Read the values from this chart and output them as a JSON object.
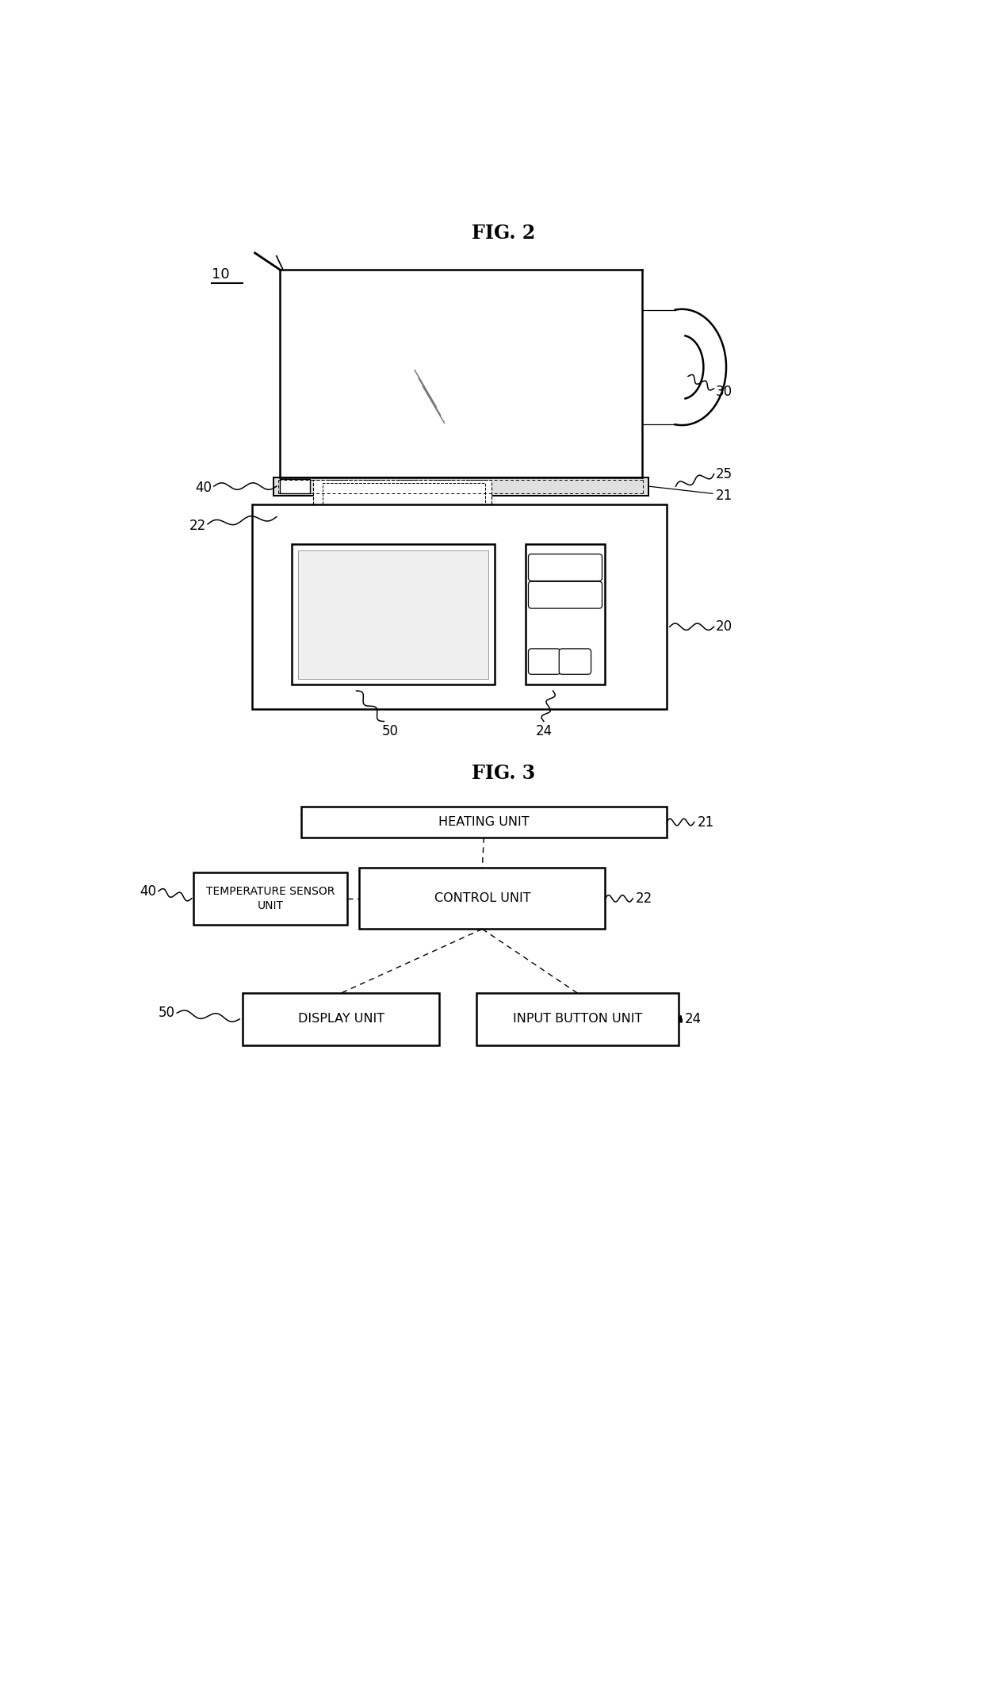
{
  "fig_width": 12.4,
  "fig_height": 21.51,
  "bg_color": "#ffffff",
  "line_color": "#000000",
  "title1": "FIG. 2",
  "title2": "FIG. 3",
  "label_10": "10",
  "label_20": "20",
  "label_21": "21",
  "label_22": "22",
  "label_24": "24",
  "label_25": "25",
  "label_30": "30",
  "label_40": "40",
  "label_50": "50",
  "box_heating": "HEATING UNIT",
  "box_control": "CONTROL UNIT",
  "box_temp": "TEMPERATURE SENSOR\nUNIT",
  "box_display": "DISPLAY UNIT",
  "box_input": "INPUT BUTTON UNIT"
}
